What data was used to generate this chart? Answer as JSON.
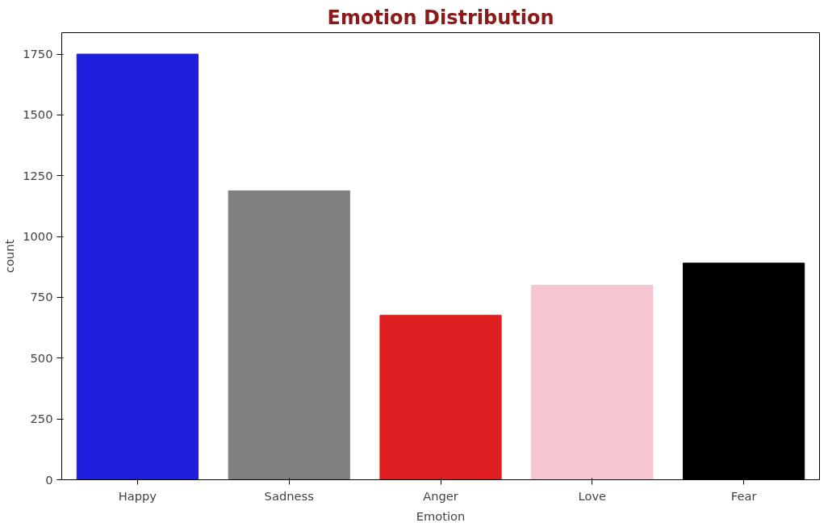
{
  "chart_data": {
    "type": "bar",
    "title": "Emotion Distribution",
    "xlabel": "Emotion",
    "ylabel": "count",
    "categories": [
      "Happy",
      "Sadness",
      "Anger",
      "Love",
      "Fear"
    ],
    "values": [
      1750,
      1188,
      676,
      800,
      891
    ],
    "colors": [
      "#1f1fdf",
      "#808080",
      "#df1f1f",
      "#f5c6cf",
      "#000000"
    ],
    "ylim": [
      0,
      1838
    ],
    "yticks": [
      0,
      250,
      500,
      750,
      1000,
      1250,
      1500,
      1750
    ],
    "grid": false
  }
}
